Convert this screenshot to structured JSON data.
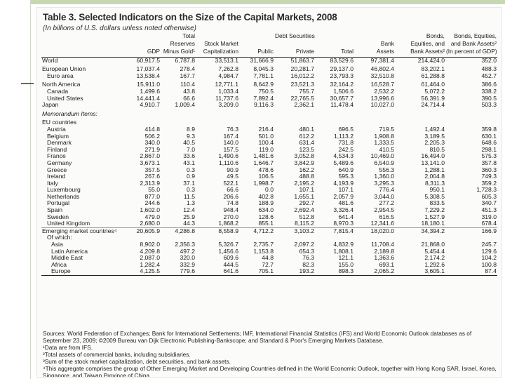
{
  "document": {
    "title": "Table 3. Selected Indicators on the Size of the Capital Markets, 2008",
    "subtitle": "(In billions of U.S. dollars unless noted otherwise)",
    "header_top": {
      "debt_securities": "Debt Securities",
      "bonds_equities_assets": "Bonds,",
      "bonds_equities_assets_pct": "Bonds, Equities,"
    },
    "columns": [
      {
        "lines": [
          "",
          "",
          "GDP"
        ]
      },
      {
        "lines": [
          "Total",
          "Reserves",
          "Minus Gold¹"
        ]
      },
      {
        "lines": [
          "",
          "Stock Market",
          "Capitalization"
        ]
      },
      {
        "lines": [
          "",
          "",
          "Public"
        ]
      },
      {
        "lines": [
          "Debt Securities",
          "",
          "Private"
        ]
      },
      {
        "lines": [
          "",
          "",
          "Total"
        ]
      },
      {
        "lines": [
          "",
          "Bank",
          "Assets"
        ]
      },
      {
        "lines": [
          "Bonds,",
          "Equities, and",
          "Bank Assets²"
        ]
      },
      {
        "lines": [
          "Bonds, Equities,",
          "and Bank Assets²",
          "(In percent of GDP)"
        ]
      }
    ],
    "rows": [
      {
        "label": "World",
        "values": [
          "60,917.5",
          "6,787.8",
          "33,513.1",
          "31,666.9",
          "51,863.7",
          "83,529.6",
          "97,381.4",
          "214,424.0",
          "352.0"
        ],
        "cls": "row"
      },
      {
        "label": "European Union",
        "values": [
          "17,037.4",
          "278.4",
          "7,262.8",
          "8,045.3",
          "20,281.7",
          "29,137.0",
          "46,802.4",
          "83,202.1",
          "488.3"
        ],
        "cls": "row group-start"
      },
      {
        "label": "Euro area",
        "values": [
          "13,538.4",
          "167.7",
          "4,984.7",
          "7,781.1",
          "16,012.2",
          "23,793.3",
          "32,510.8",
          "61,288.8",
          "452.7"
        ],
        "cls": "row indent1"
      },
      {
        "label": "North America",
        "values": [
          "15,911.0",
          "110.4",
          "12,771.1",
          "8,642.9",
          "23,521.3",
          "32,164.2",
          "16,528.7",
          "61,464.0",
          "386.6"
        ],
        "cls": "row group-start"
      },
      {
        "label": "Canada",
        "values": [
          "1,499.6",
          "43.8",
          "1,033.4",
          "750.5",
          "755.7",
          "1,506.6",
          "2,532.2",
          "5,072.2",
          "338.2"
        ],
        "cls": "row indent1"
      },
      {
        "label": "United States",
        "values": [
          "14,441.4",
          "66.6",
          "11,737.6",
          "7,892.4",
          "22,765.5",
          "30,657.7",
          "13,996.6",
          "56,391.9",
          "390.5"
        ],
        "cls": "row indent1"
      },
      {
        "label": "Japan",
        "values": [
          "4,910.7",
          "1,009.4",
          "3,209.0",
          "9,116.3",
          "2,362.1",
          "11,478.4",
          "10,027.0",
          "24,714.4",
          "503.3"
        ],
        "cls": "row"
      },
      {
        "label": "Memorandum Items:",
        "values": [
          "",
          "",
          "",
          "",
          "",
          "",
          "",
          "",
          ""
        ],
        "cls": "row italic group-start"
      },
      {
        "label": "EU countries",
        "values": [
          "",
          "",
          "",
          "",
          "",
          "",
          "",
          "",
          ""
        ],
        "cls": "row group-start"
      },
      {
        "label": "Austria",
        "values": [
          "414.8",
          "8.9",
          "76.3",
          "216.4",
          "480.1",
          "696.5",
          "719.5",
          "1,492.4",
          "359.8"
        ],
        "cls": "row indent1"
      },
      {
        "label": "Belgium",
        "values": [
          "506.2",
          "9.3",
          "167.4",
          "501.0",
          "612.2",
          "1,113.2",
          "1,908.8",
          "3,189.5",
          "630.1"
        ],
        "cls": "row indent1"
      },
      {
        "label": "Denmark",
        "values": [
          "340.0",
          "40.5",
          "140.0",
          "100.4",
          "631.4",
          "731.8",
          "1,333.5",
          "2,205.3",
          "648.6"
        ],
        "cls": "row indent1"
      },
      {
        "label": "Finland",
        "values": [
          "271.9",
          "7.0",
          "157.5",
          "119.0",
          "123.5",
          "242.5",
          "410.5",
          "810.5",
          "298.1"
        ],
        "cls": "row indent1"
      },
      {
        "label": "France",
        "values": [
          "2,867.0",
          "33.6",
          "1,490.6",
          "1,481.6",
          "3,052.8",
          "4,534.3",
          "10,469.0",
          "16,494.0",
          "575.3"
        ],
        "cls": "row indent1"
      },
      {
        "label": "Germany",
        "values": [
          "3,673.1",
          "43.1",
          "1,110.6",
          "1,646.7",
          "3,842.9",
          "5,489.6",
          "6,540.9",
          "13,141.0",
          "357.8"
        ],
        "cls": "row indent1"
      },
      {
        "label": "Greece",
        "values": [
          "357.5",
          "0.3",
          "90.9",
          "478.6",
          "162.2",
          "640.9",
          "556.3",
          "1,288.1",
          "360.3"
        ],
        "cls": "row indent1"
      },
      {
        "label": "Ireland",
        "values": [
          "267.6",
          "0.9",
          "49.5",
          "106.5",
          "488.8",
          "595.3",
          "1,360.0",
          "2,004.8",
          "749.3"
        ],
        "cls": "row indent1"
      },
      {
        "label": "Italy",
        "values": [
          "2,313.9",
          "37.1",
          "522.1",
          "1,998.7",
          "2,195.2",
          "4,193.9",
          "3,295.3",
          "8,311.3",
          "359.2"
        ],
        "cls": "row indent1"
      },
      {
        "label": "Luxembourg",
        "values": [
          "55.0",
          "0.3",
          "66.6",
          "0.0",
          "107.1",
          "107.1",
          "776.4",
          "950.1",
          "1,728.3"
        ],
        "cls": "row indent1"
      },
      {
        "label": "Netherlands",
        "values": [
          "877.0",
          "11.5",
          "206.6",
          "402.8",
          "1,655.1",
          "2,057.9",
          "3,044.0",
          "5,308.5",
          "605.3"
        ],
        "cls": "row indent1"
      },
      {
        "label": "Portugal",
        "values": [
          "244.6",
          "1.3",
          "74.8",
          "188.9",
          "292.7",
          "481.6",
          "277.2",
          "833.5",
          "340.7"
        ],
        "cls": "row indent1"
      },
      {
        "label": "Spain",
        "values": [
          "1,602.0",
          "12.4",
          "948.4",
          "634.0",
          "2,692.4",
          "3,326.4",
          "2,954.5",
          "7,229.2",
          "451.3"
        ],
        "cls": "row indent1"
      },
      {
        "label": "Sweden",
        "values": [
          "479.0",
          "25.9",
          "270.0",
          "128.6",
          "512.8",
          "641.4",
          "616.5",
          "1,527.9",
          "319.0"
        ],
        "cls": "row indent1"
      },
      {
        "label": "United Kingdom",
        "values": [
          "2,680.0",
          "44.3",
          "1,868.2",
          "855.1",
          "8,115.2",
          "8,970.3",
          "12,341.6",
          "18,180.1",
          "678.4"
        ],
        "cls": "row indent1"
      },
      {
        "label": "Emerging market countries⁴",
        "values": [
          "20,605.9",
          "4,286.8",
          "8,558.9",
          "4,712.2",
          "3,103.2",
          "7,815.4",
          "18,020.0",
          "34,394.2",
          "166.9"
        ],
        "cls": "row rule"
      },
      {
        "label": "Of which:",
        "values": [
          "",
          "",
          "",
          "",
          "",
          "",
          "",
          "",
          ""
        ],
        "cls": "row indent1"
      },
      {
        "label": "Asia",
        "values": [
          "8,902.0",
          "2,356.3",
          "5,326.7",
          "2,735.7",
          "2,097.2",
          "4,832.9",
          "11,708.4",
          "21,868.0",
          "245.7"
        ],
        "cls": "row indent2"
      },
      {
        "label": "Latin America",
        "values": [
          "4,209.8",
          "497.2",
          "1,456.6",
          "1,153.8",
          "654.3",
          "1,808.1",
          "2,189.8",
          "5,454.4",
          "129.6"
        ],
        "cls": "row indent2"
      },
      {
        "label": "Middle East",
        "values": [
          "2,087.0",
          "320.0",
          "609.6",
          "44.8",
          "76.3",
          "121.1",
          "1,363.6",
          "2,174.2",
          "104.2"
        ],
        "cls": "row indent2"
      },
      {
        "label": "Africa",
        "values": [
          "1,282.4",
          "332.9",
          "444.5",
          "72.7",
          "82.3",
          "155.0",
          "693.1",
          "1,292.6",
          "100.8"
        ],
        "cls": "row indent2"
      },
      {
        "label": "Europe",
        "values": [
          "4,125.5",
          "779.6",
          "641.6",
          "705.1",
          "193.2",
          "898.3",
          "2,065.2",
          "3,605.1",
          "87.4"
        ],
        "cls": "row indent2"
      }
    ],
    "notes": {
      "sources": "Sources: World Federation of Exchanges; Bank for International Settlements; IMF, International Financial Statistics (IFS) and World Economic Outlook databases as of September 23, 2009; ©2009 Bureau van Dijk Electronic Publishing-Bankscope; and Standard & Poor's Emerging Markets Database.",
      "n1": "¹Data are from IFS.",
      "n2": "²Total assets of commercial banks, including subsidiaries.",
      "n3": "³Sum of the stock market capitalization, debt securities, and bank assets.",
      "n4": "⁴This aggregate comprises the group of Other Emerging Market and Developing Countries defined in the World Economic Outlook, together with Hong Kong SAR, Israel, Korea, Singapore, and Taiwan Province of China."
    }
  }
}
